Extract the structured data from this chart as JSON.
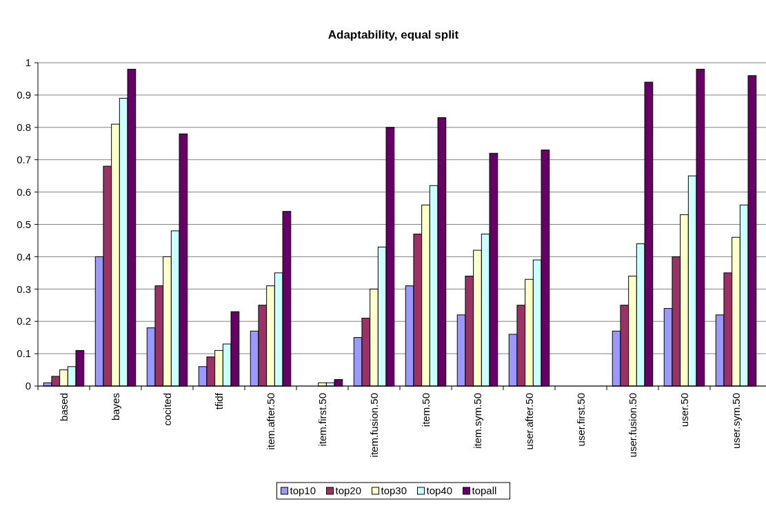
{
  "chart_data": {
    "type": "bar",
    "title": "Adaptability, equal split",
    "categories": [
      "based",
      "bayes",
      "cocited",
      "tfidf",
      "item.after.50",
      "item.first.50",
      "item.fusion.50",
      "item.50",
      "item.sym.50",
      "user.after.50",
      "user.first.50",
      "user.fusion.50",
      "user.50",
      "user.sym.50"
    ],
    "series": [
      {
        "name": "top10",
        "color": "#9999ff",
        "values": [
          0.01,
          0.4,
          0.18,
          0.06,
          0.17,
          0,
          0.15,
          0.31,
          0.22,
          0.16,
          0,
          0.17,
          0.24,
          0.22
        ]
      },
      {
        "name": "top20",
        "color": "#993366",
        "values": [
          0.03,
          0.68,
          0.31,
          0.09,
          0.25,
          0,
          0.21,
          0.47,
          0.34,
          0.25,
          0,
          0.25,
          0.4,
          0.35
        ]
      },
      {
        "name": "top30",
        "color": "#ffffcc",
        "values": [
          0.05,
          0.81,
          0.4,
          0.11,
          0.31,
          0.01,
          0.3,
          0.56,
          0.42,
          0.33,
          0,
          0.34,
          0.53,
          0.46
        ]
      },
      {
        "name": "top40",
        "color": "#ccffff",
        "values": [
          0.06,
          0.89,
          0.48,
          0.13,
          0.35,
          0.01,
          0.43,
          0.62,
          0.47,
          0.39,
          0,
          0.44,
          0.65,
          0.56
        ]
      },
      {
        "name": "topall",
        "color": "#660066",
        "values": [
          0.11,
          0.98,
          0.78,
          0.23,
          0.54,
          0.02,
          0.8,
          0.83,
          0.72,
          0.73,
          0,
          0.94,
          0.98,
          0.96
        ]
      }
    ],
    "ylim": [
      0,
      1
    ],
    "yticks": [
      0,
      0.1,
      0.2,
      0.3,
      0.4,
      0.5,
      0.6,
      0.7,
      0.8,
      0.9,
      1
    ],
    "grid": "y",
    "legend": "bottom"
  }
}
